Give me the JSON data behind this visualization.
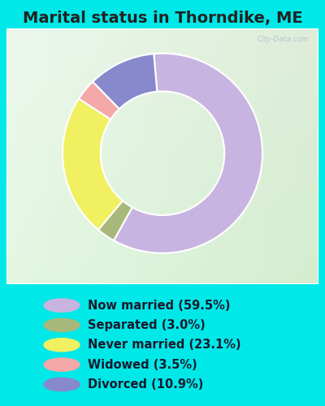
{
  "title": "Marital status in Thorndike, ME",
  "slices": [
    59.5,
    3.0,
    23.1,
    3.5,
    10.9
  ],
  "labels": [
    "Now married (59.5%)",
    "Separated (3.0%)",
    "Never married (23.1%)",
    "Widowed (3.5%)",
    "Divorced (10.9%)"
  ],
  "colors": [
    "#c8b4e0",
    "#a8b87a",
    "#f0f060",
    "#f4a8a8",
    "#8888cc"
  ],
  "background_cyan": "#00e8e8",
  "chart_bg": "#e6f5e6",
  "title_fontsize": 14,
  "legend_fontsize": 10.5,
  "watermark": "City-Data.com",
  "donut_width": 0.38,
  "ordered_slices": [
    59.5,
    3.0,
    23.1,
    3.5,
    10.9
  ],
  "ordered_colors": [
    "#c8b4e0",
    "#a8b87a",
    "#f0f060",
    "#f4a8a8",
    "#8888cc"
  ],
  "start_angle": 95
}
